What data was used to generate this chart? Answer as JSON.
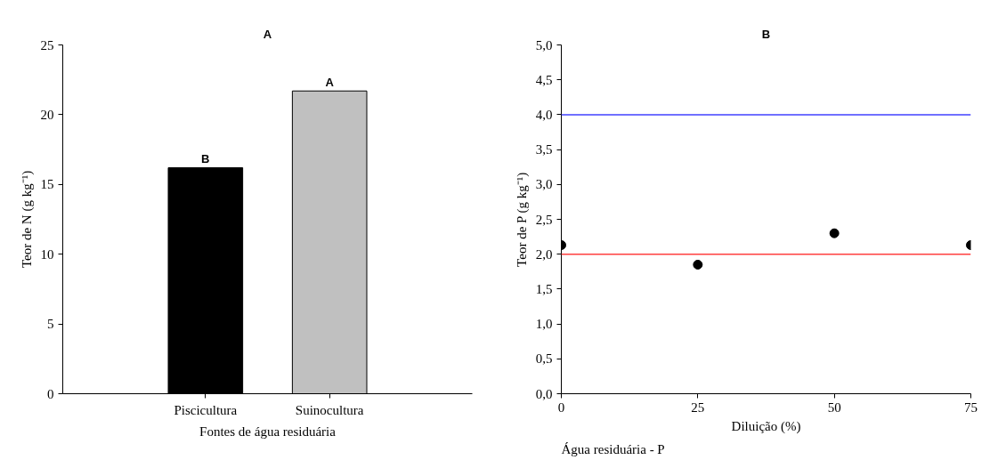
{
  "chart_data": [
    {
      "type": "bar",
      "title": "A",
      "xlabel": "Fontes de água residuária",
      "ylabel": "Teor de N (g kg⁻¹)",
      "categories": [
        "Piscicultura",
        "Suinocultura"
      ],
      "values": [
        16.2,
        21.7
      ],
      "colors": [
        "#000000",
        "#c0c0c0"
      ],
      "ylim": [
        0,
        25
      ],
      "yticks": [
        0,
        5,
        10,
        15,
        20,
        25
      ],
      "grid": false,
      "annotations": [
        {
          "text": "B",
          "x": "Piscicultura",
          "y": 16.2
        },
        {
          "text": "A",
          "x": "Suinocultura",
          "y": 21.7
        }
      ]
    },
    {
      "type": "scatter",
      "title": "B",
      "xlabel": "Diluição (%)",
      "ylabel": "Teor de P (g kg⁻¹)",
      "x": [
        0,
        25,
        50,
        75
      ],
      "values": [
        2.13,
        1.85,
        2.3,
        2.13
      ],
      "color": "#000000",
      "marker": "circle",
      "xlim": [
        0,
        75
      ],
      "xticks": [
        0,
        25,
        50,
        75
      ],
      "ylim": [
        0,
        5
      ],
      "yticks": [
        {
          "value": 0,
          "label": "0,0"
        },
        {
          "value": 0.5,
          "label": "0,5"
        },
        {
          "value": 1,
          "label": "1,0"
        },
        {
          "value": 1.5,
          "label": "1,5"
        },
        {
          "value": 2,
          "label": "2,0"
        },
        {
          "value": 2.5,
          "label": "2,5"
        },
        {
          "value": 3,
          "label": "3,0"
        },
        {
          "value": 3.5,
          "label": "3,5"
        },
        {
          "value": 4,
          "label": "4,0"
        },
        {
          "value": 4.5,
          "label": "4,5"
        },
        {
          "value": 5,
          "label": "5,0"
        }
      ],
      "ref_lines": [
        {
          "axis": "y",
          "value": 4,
          "color": "#4040ff"
        },
        {
          "axis": "y",
          "value": 2,
          "color": "#ff4040"
        }
      ],
      "grid": false,
      "annotations": [
        "Água residuária - P"
      ]
    }
  ]
}
